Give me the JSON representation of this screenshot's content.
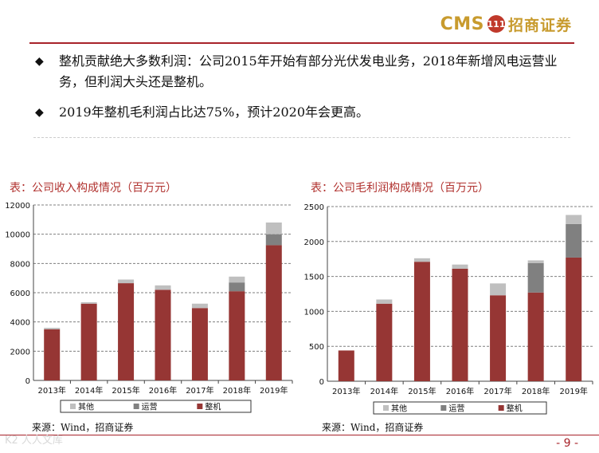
{
  "header": {
    "logo_text": "CMS",
    "logo_mark": "111",
    "logo_name": "招商证券"
  },
  "bullets": [
    {
      "marker": "◆",
      "text": "整机贡献绝大多数利润：公司2015年开始有部分光伏发电业务，2018年新增风电运营业务，但利润大头还是整机。"
    },
    {
      "marker": "◆",
      "text": "2019年整机毛利润占比达75%，预计2020年会更高。"
    }
  ],
  "colors": {
    "accent": "#a8232a",
    "series_main": "#963634",
    "series_ops": "#808080",
    "series_other": "#bfbfbf"
  },
  "chart_data": [
    {
      "type": "bar",
      "stacked": true,
      "title": "表：公司收入构成情况（百万元）",
      "categories": [
        "2013年",
        "2014年",
        "2015年",
        "2016年",
        "2017年",
        "2018年",
        "2019年"
      ],
      "series": [
        {
          "name": "整机",
          "values": [
            3500,
            5250,
            6650,
            6200,
            4950,
            6100,
            9250
          ]
        },
        {
          "name": "运营",
          "values": [
            0,
            0,
            0,
            0,
            0,
            600,
            750
          ]
        },
        {
          "name": "其他",
          "values": [
            100,
            100,
            250,
            300,
            300,
            400,
            800
          ]
        }
      ],
      "legend_order": [
        "其他",
        "运营",
        "整机"
      ],
      "ylim": [
        0,
        12000
      ],
      "yticks": [
        "0",
        "2000",
        "4000",
        "6000",
        "8000",
        "10000",
        "12000"
      ],
      "xlabel": "",
      "ylabel": "",
      "source": "来源：Wind，招商证券"
    },
    {
      "type": "bar",
      "stacked": true,
      "title": "表：公司毛利润构成情况（百万元）",
      "categories": [
        "2013年",
        "2014年",
        "2015年",
        "2016年",
        "2017年",
        "2018年",
        "2019年"
      ],
      "series": [
        {
          "name": "整机",
          "values": [
            440,
            1110,
            1710,
            1610,
            1230,
            1270,
            1770
          ]
        },
        {
          "name": "运营",
          "values": [
            0,
            0,
            0,
            0,
            0,
            420,
            480
          ]
        },
        {
          "name": "其他",
          "values": [
            0,
            60,
            50,
            60,
            170,
            40,
            130
          ]
        }
      ],
      "legend_order": [
        "其他",
        "运营",
        "整机"
      ],
      "ylim": [
        0,
        2500
      ],
      "yticks": [
        "0",
        "500",
        "1000",
        "1500",
        "2000",
        "2500"
      ],
      "xlabel": "",
      "ylabel": "",
      "source": "来源：Wind，招商证券"
    }
  ],
  "footer": {
    "page_number": "- 9 -",
    "watermark": "K2 人人文库"
  }
}
